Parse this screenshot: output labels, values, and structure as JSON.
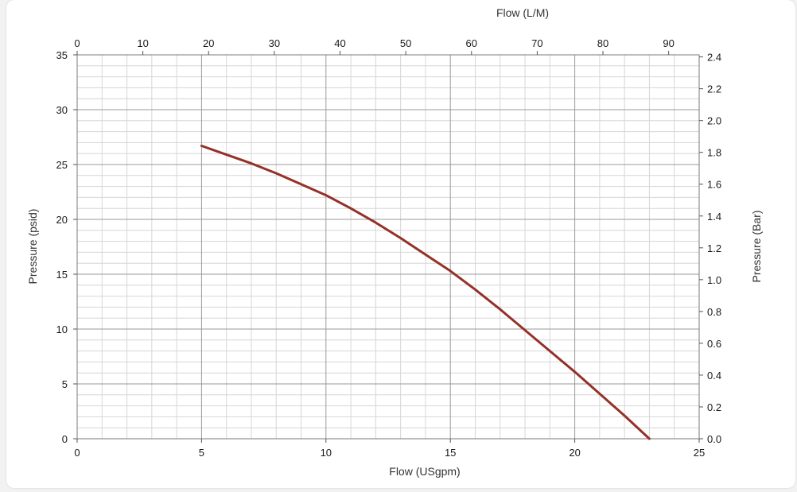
{
  "chart_data": {
    "type": "line",
    "title": "",
    "xlabel": "Flow (USgpm)",
    "x2label": "Flow (L/M)",
    "ylabel": "Pressure (psid)",
    "y2label": "Pressure (Bar)",
    "xlim": [
      0,
      25
    ],
    "ylim": [
      0,
      35
    ],
    "x2lim": [
      0,
      94.64
    ],
    "y2lim": [
      0,
      2.413
    ],
    "x_ticks": [
      "0",
      "5",
      "10",
      "15",
      "20",
      "25"
    ],
    "x_tick_values": [
      0,
      5,
      10,
      15,
      20,
      25
    ],
    "x2_ticks": [
      "0",
      "10",
      "20",
      "30",
      "40",
      "50",
      "60",
      "70",
      "80",
      "90"
    ],
    "x2_tick_values": [
      0,
      10,
      20,
      30,
      40,
      50,
      60,
      70,
      80,
      90
    ],
    "y_ticks": [
      "0",
      "5",
      "10",
      "15",
      "20",
      "25",
      "30",
      "35"
    ],
    "y_tick_values": [
      0,
      5,
      10,
      15,
      20,
      25,
      30,
      35
    ],
    "y2_ticks": [
      "0.0",
      "0.2",
      "0.4",
      "0.6",
      "0.8",
      "1.0",
      "1.2",
      "1.4",
      "1.6",
      "1.8",
      "2.0",
      "2.2",
      "2.4"
    ],
    "y2_tick_values": [
      0,
      0.2,
      0.4,
      0.6,
      0.8,
      1.0,
      1.2,
      1.4,
      1.6,
      1.8,
      2.0,
      2.2,
      2.4
    ],
    "grid": true,
    "series": [
      {
        "x": [
          5,
          6,
          7,
          8,
          9,
          10,
          11,
          12,
          13,
          14,
          15,
          16,
          17,
          18,
          19,
          20,
          21,
          22,
          23
        ],
        "y": [
          26.7,
          25.9,
          25.1,
          24.2,
          23.2,
          22.2,
          21.0,
          19.7,
          18.3,
          16.8,
          15.3,
          13.6,
          11.8,
          9.9,
          8.0,
          6.1,
          4.1,
          2.1,
          0.0
        ],
        "color": "#943128"
      }
    ]
  }
}
